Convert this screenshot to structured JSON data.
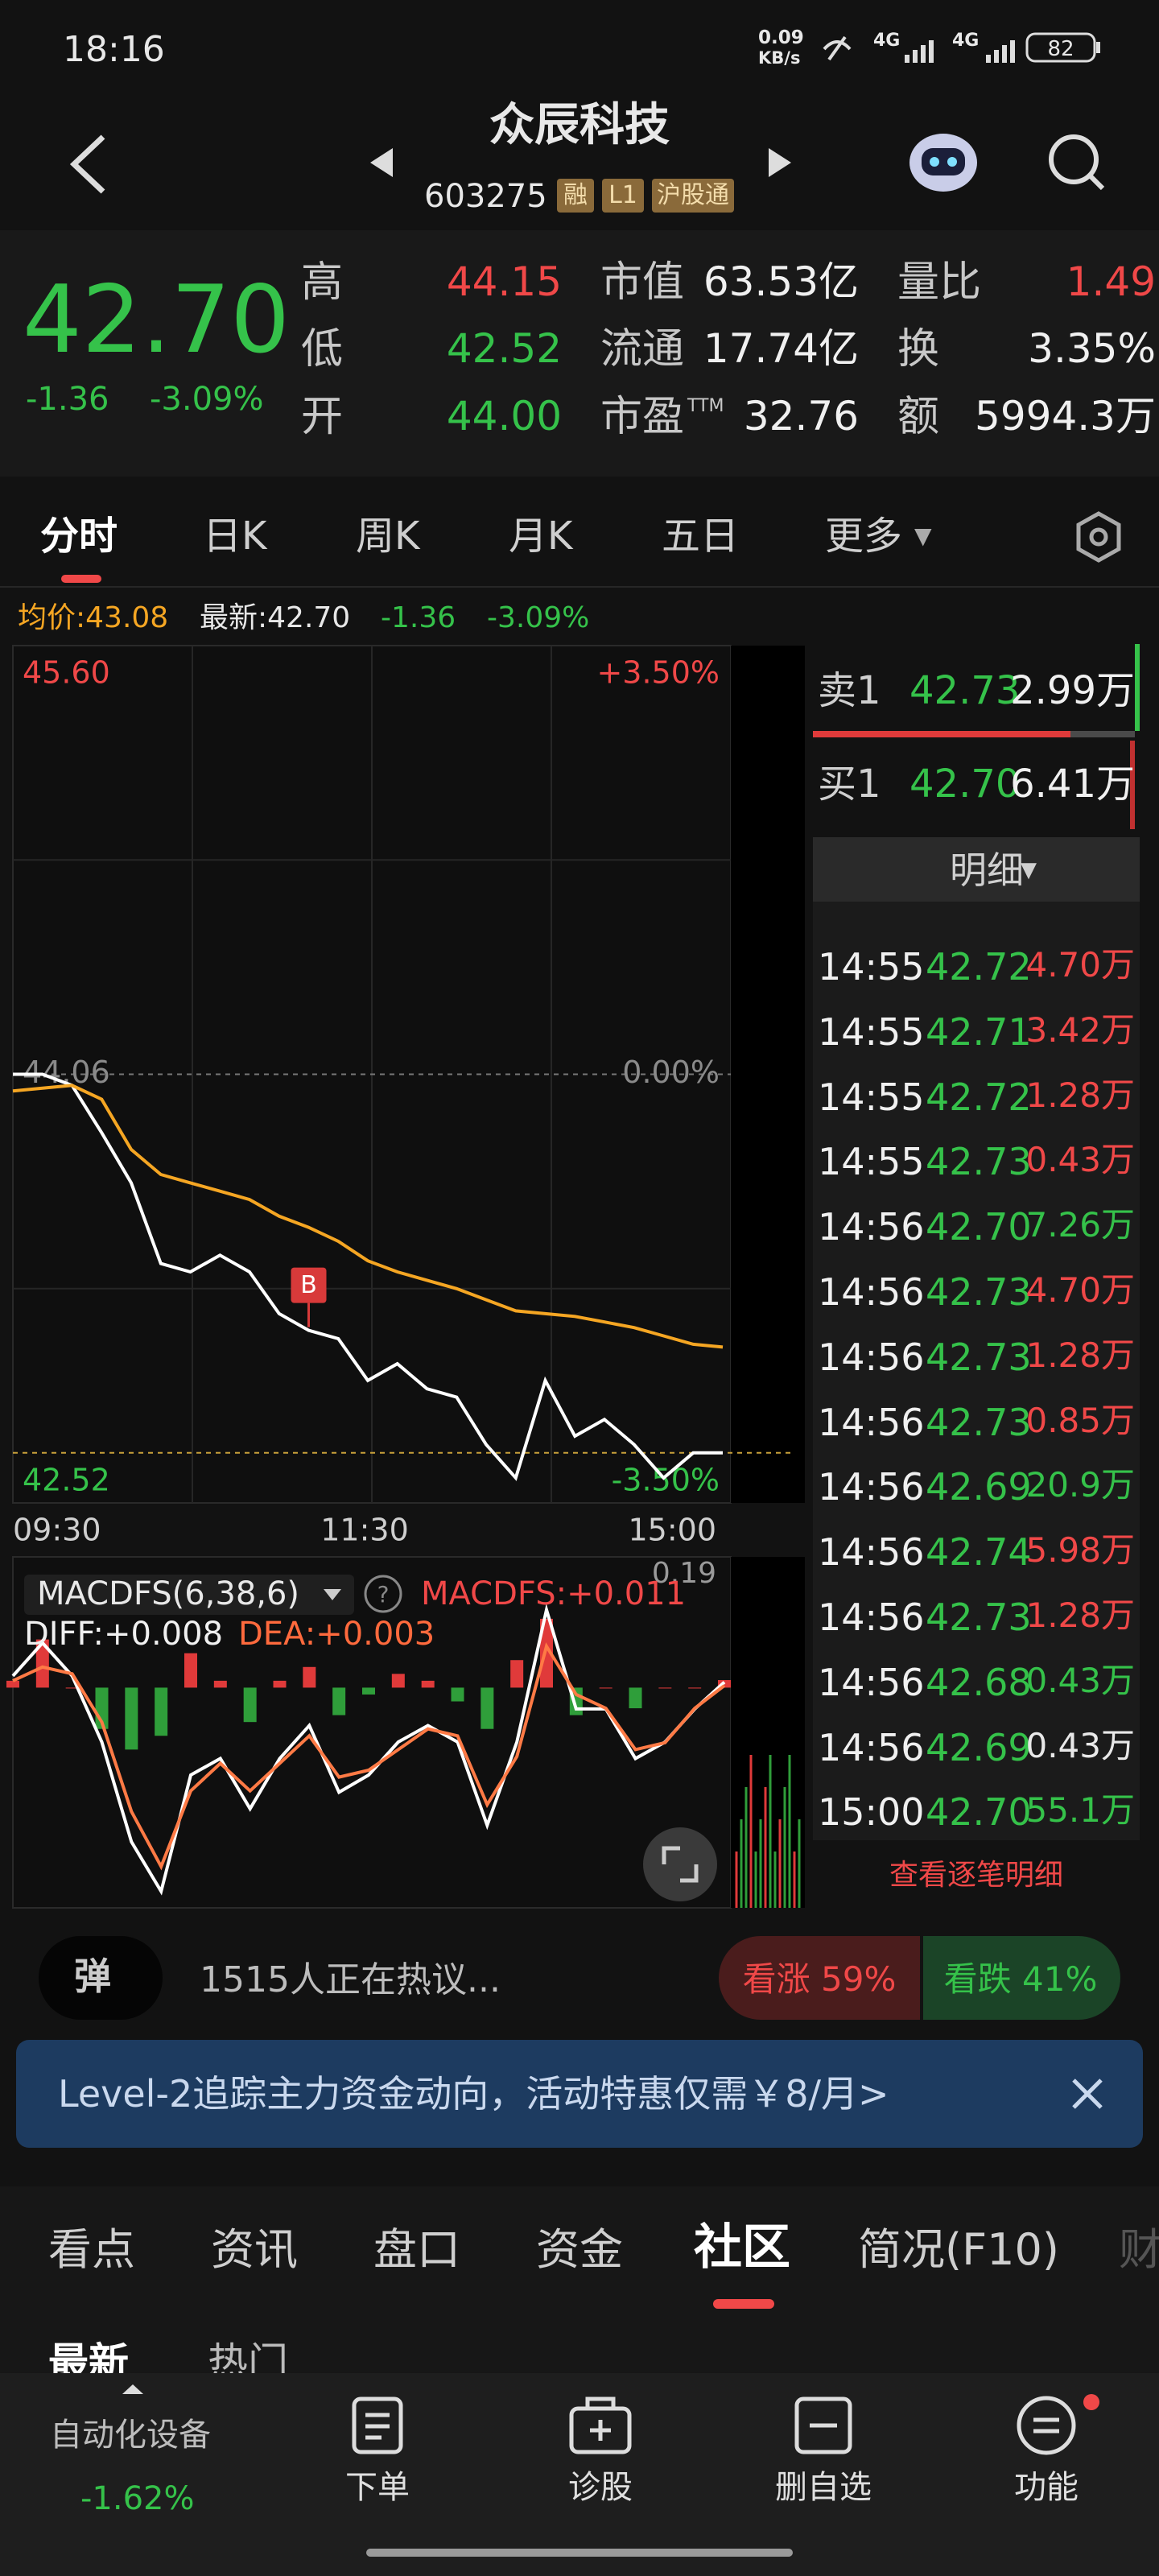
{
  "status_bar": {
    "time": "18:16",
    "net_speed": "0.09",
    "net_unit": "KB/s",
    "net1": "4G",
    "net2": "4G",
    "battery": "82"
  },
  "header": {
    "title": "众辰科技",
    "code": "603275",
    "badges": [
      "融",
      "L1",
      "沪股通"
    ]
  },
  "quote": {
    "price": "42.70",
    "change": "-1.36",
    "change_pct": "-3.09%",
    "col1": [
      {
        "label": "高",
        "value": "44.15"
      },
      {
        "label": "低",
        "value": "42.52"
      },
      {
        "label": "开",
        "value": "44.00"
      }
    ],
    "col2": [
      {
        "label": "市值",
        "value": "63.53亿"
      },
      {
        "label": "流通",
        "value": "17.74亿"
      },
      {
        "label": "市盈",
        "suffix": "TTM",
        "value": "32.76"
      }
    ],
    "col3": [
      {
        "label": "量比",
        "value": "1.49"
      },
      {
        "label": "换",
        "value": "3.35%"
      },
      {
        "label": "额",
        "value": "5994.3万"
      }
    ]
  },
  "tabs": [
    "分时",
    "日K",
    "周K",
    "月K",
    "五日",
    "更多"
  ],
  "info_line": {
    "avg": "均价:43.08",
    "last": "最新:42.70",
    "change": "-1.36",
    "change_pct": "-3.09%"
  },
  "chart_data": [
    {
      "type": "line",
      "series": [
        {
          "color": "#ffffff",
          "values": [
            44.06,
            44.06,
            44.02,
            43.85,
            43.67,
            43.38,
            43.35,
            43.41,
            43.35,
            43.2,
            43.14,
            43.11,
            42.96,
            43.02,
            42.93,
            42.9,
            42.73,
            42.61,
            42.96,
            42.76,
            42.82,
            42.73,
            42.61,
            42.7,
            42.7
          ]
        },
        {
          "color": "#f5a623",
          "values": [
            44.0,
            44.01,
            44.02,
            43.97,
            43.79,
            43.7,
            43.67,
            43.64,
            43.61,
            43.55,
            43.51,
            43.46,
            43.39,
            43.35,
            43.32,
            43.29,
            43.25,
            43.21,
            43.2,
            43.19,
            43.17,
            43.15,
            43.12,
            43.09,
            43.08
          ]
        }
      ],
      "ylim": [
        42.52,
        45.6
      ],
      "yticks": [
        {
          "value": 45.6,
          "label": "45.60"
        },
        {
          "value": 44.06,
          "label": "44.06"
        },
        {
          "value": 42.52,
          "label": "42.52"
        }
      ],
      "y2lim": [
        -3.5,
        3.5
      ],
      "y2ticks": [
        {
          "value": 3.5,
          "label": "+3.50%"
        },
        {
          "value": 0,
          "label": "0.00%"
        },
        {
          "value": -3.5,
          "label": "-3.50%"
        }
      ],
      "xticks": [
        "09:30",
        "11:30",
        "15:00"
      ],
      "annotation": "B",
      "colors": {
        "up": "#f04848",
        "flat": "#8a8a8a",
        "down": "#35c24a"
      },
      "grid": true
    },
    {
      "type": "macd",
      "indicator": "MACDFS(6,38,6)",
      "macd_label": "MACDFS:+0.011",
      "diff_label": "DIFF:+0.008",
      "dea_label": "DEA:+0.003",
      "ylim": [
        -0.32,
        0.19
      ],
      "yticks": [
        0.19
      ],
      "histogram": [
        0.01,
        0.07,
        0,
        -0.06,
        -0.09,
        -0.07,
        0.05,
        0.01,
        -0.05,
        0.01,
        0.03,
        -0.04,
        -0.01,
        0.02,
        0.01,
        -0.02,
        -0.06,
        0.04,
        0.1,
        -0.04,
        0,
        -0.03,
        0,
        0,
        0.011
      ],
      "series": [
        {
          "color": "#ffffff",
          "values": [
            0.017,
            0.065,
            0.017,
            -0.079,
            -0.224,
            -0.296,
            -0.127,
            -0.103,
            -0.176,
            -0.103,
            -0.055,
            -0.152,
            -0.127,
            -0.079,
            -0.055,
            -0.079,
            -0.2,
            -0.079,
            0.113,
            -0.031,
            -0.031,
            -0.103,
            -0.079,
            -0.031,
            0.008
          ]
        },
        {
          "color": "#ff7a45",
          "values": [
            0.01,
            0.03,
            0.02,
            -0.05,
            -0.18,
            -0.26,
            -0.15,
            -0.11,
            -0.15,
            -0.11,
            -0.07,
            -0.13,
            -0.12,
            -0.09,
            -0.06,
            -0.07,
            -0.17,
            -0.1,
            0.06,
            -0.01,
            -0.03,
            -0.09,
            -0.08,
            -0.03,
            0.003
          ]
        }
      ],
      "colors": {
        "up": "#e03a3a",
        "down": "#2f9e3a"
      }
    }
  ],
  "order_book": {
    "ask": {
      "label": "卖1",
      "price": "42.73",
      "volume": "2.99万"
    },
    "bid": {
      "label": "买1",
      "price": "42.70",
      "volume": "6.41万"
    },
    "detail_title": "明细",
    "trades": [
      {
        "time": "14:55",
        "price": "42.72",
        "volume": "4.70万",
        "color": "#f04848"
      },
      {
        "time": "14:55",
        "price": "42.71",
        "volume": "3.42万",
        "color": "#f04848"
      },
      {
        "time": "14:55",
        "price": "42.72",
        "volume": "1.28万",
        "color": "#f04848"
      },
      {
        "time": "14:55",
        "price": "42.73",
        "volume": "0.43万",
        "color": "#f04848"
      },
      {
        "time": "14:56",
        "price": "42.70",
        "volume": "7.26万",
        "color": "#35c24a"
      },
      {
        "time": "14:56",
        "price": "42.73",
        "volume": "4.70万",
        "color": "#f04848"
      },
      {
        "time": "14:56",
        "price": "42.73",
        "volume": "1.28万",
        "color": "#f04848"
      },
      {
        "time": "14:56",
        "price": "42.73",
        "volume": "0.85万",
        "color": "#f04848"
      },
      {
        "time": "14:56",
        "price": "42.69",
        "volume": "20.9万",
        "color": "#35c24a"
      },
      {
        "time": "14:56",
        "price": "42.74",
        "volume": "5.98万",
        "color": "#f04848"
      },
      {
        "time": "14:56",
        "price": "42.73",
        "volume": "1.28万",
        "color": "#f04848"
      },
      {
        "time": "14:56",
        "price": "42.68",
        "volume": "0.43万",
        "color": "#35c24a"
      },
      {
        "time": "14:56",
        "price": "42.69",
        "volume": "0.43万",
        "color": "#e8e8e8"
      },
      {
        "time": "15:00",
        "price": "42.70",
        "volume": "55.1万",
        "color": "#35c24a"
      }
    ],
    "more": "查看逐笔明细"
  },
  "community": {
    "button": "弹",
    "discussion": "1515人正在热议...",
    "bull": "看涨 59%",
    "bear": "看跌 41%"
  },
  "banner": "Level-2追踪主力资金动向，活动特惠仅需￥8/月>",
  "section_tabs": [
    "看点",
    "资讯",
    "盘口",
    "资金",
    "社区",
    "简况(F10)",
    "财"
  ],
  "sub_tabs": [
    "最新",
    "热门"
  ],
  "bottom_nav": {
    "sector": "自动化设备",
    "sector_change": "-1.62%",
    "items": [
      "下单",
      "诊股",
      "删自选",
      "功能"
    ]
  }
}
